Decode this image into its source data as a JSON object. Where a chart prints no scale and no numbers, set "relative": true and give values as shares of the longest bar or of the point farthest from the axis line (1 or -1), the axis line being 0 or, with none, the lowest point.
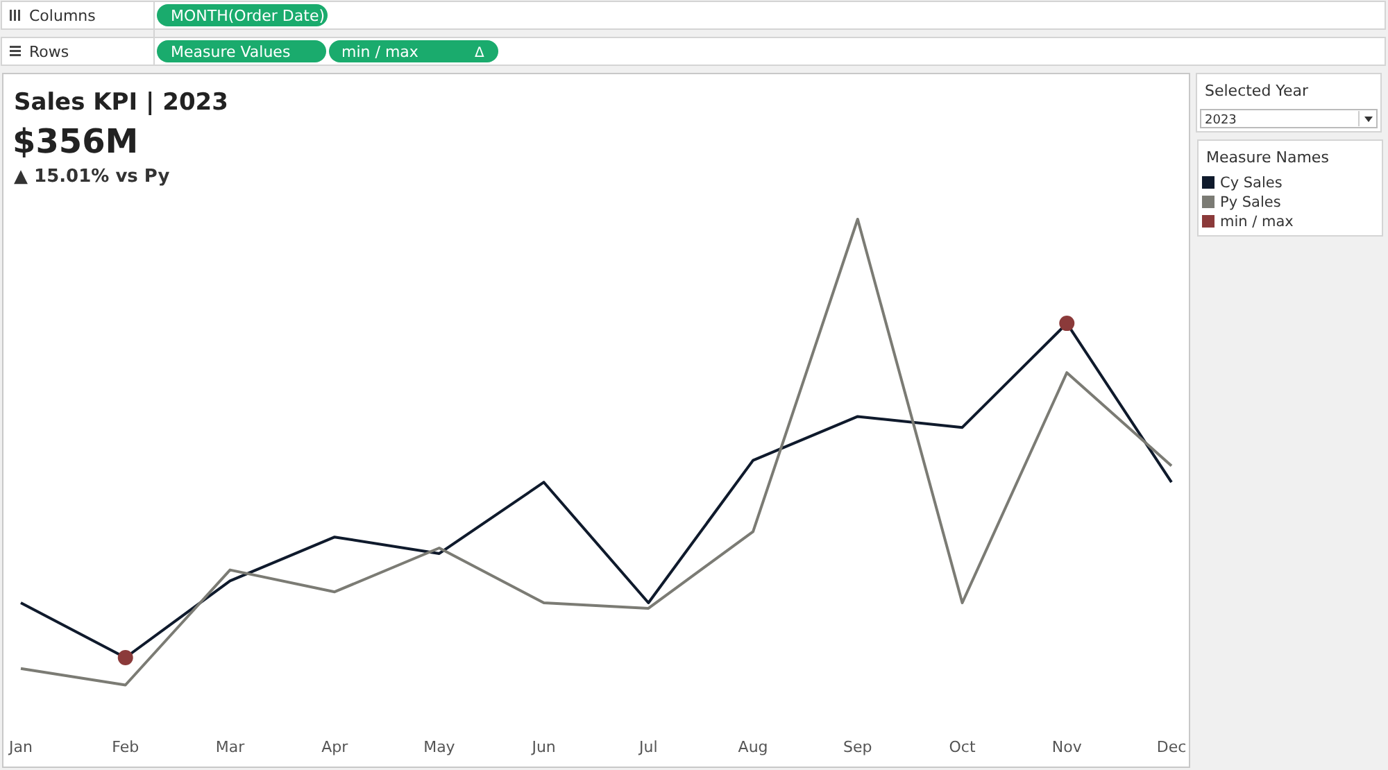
{
  "chart_data": {
    "type": "line",
    "title": "Sales KPI | 2023",
    "subtitle": "$356M",
    "categories": [
      "Jan",
      "Feb",
      "Mar",
      "Apr",
      "May",
      "Jun",
      "Jul",
      "Aug",
      "Sep",
      "Oct",
      "Nov",
      "Dec"
    ],
    "relative": true,
    "legend": "right",
    "legend_title": "Measure Names",
    "grid": false,
    "series": [
      {
        "name": "Cy Sales",
        "color": "#0f1a2c",
        "values": [
          0.3,
          0.2,
          0.34,
          0.42,
          0.39,
          0.52,
          0.3,
          0.56,
          0.64,
          0.62,
          0.81,
          0.52
        ]
      },
      {
        "name": "Py Sales",
        "color": "#7b7b74",
        "values": [
          0.18,
          0.15,
          0.36,
          0.32,
          0.4,
          0.3,
          0.29,
          0.43,
          1,
          0.3,
          0.72,
          0.55
        ]
      },
      {
        "name": "min / max",
        "type": "scatter",
        "marker": "circle",
        "color": "#8b3a3a",
        "values": [
          null,
          0.2,
          null,
          null,
          null,
          null,
          null,
          null,
          null,
          null,
          0.81,
          null
        ]
      }
    ],
    "annotations": [
      "▲ 15.01% vs Py",
      "Columns",
      "MONTH(Order Date)",
      "Rows",
      "Measure Values",
      "min / max",
      "Δ",
      "Selected Year",
      "2023"
    ]
  }
}
